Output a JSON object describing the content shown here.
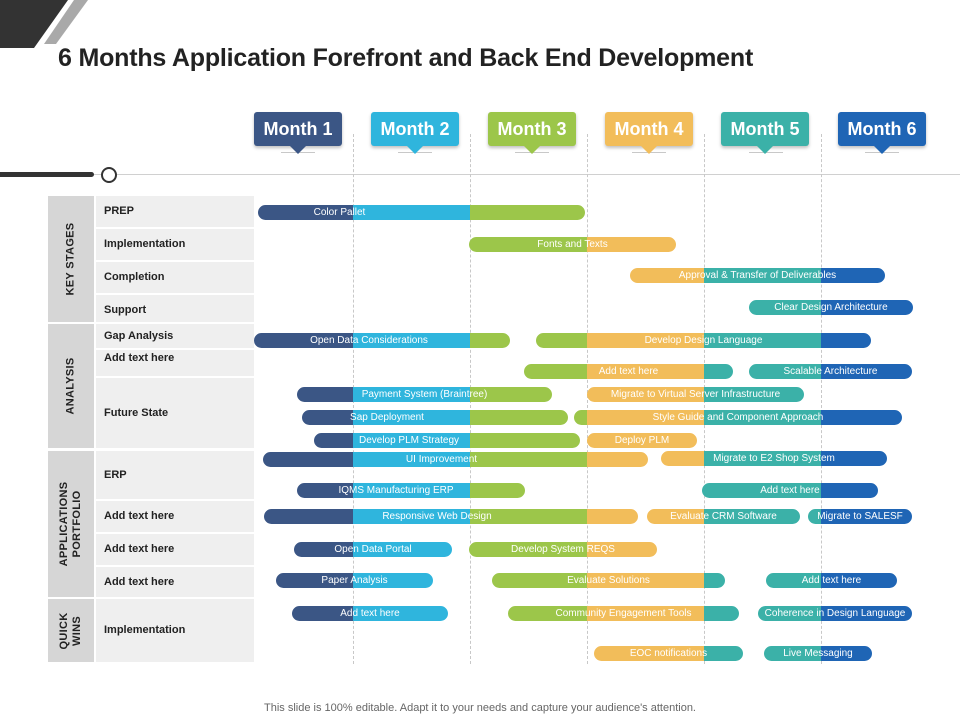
{
  "title": "6 Months Application Forefront and Back End Development",
  "footer": "This slide is 100% editable. Adapt it to your needs and capture your audience's attention.",
  "colors": {
    "navy": "#3b5685",
    "cyan": "#2fb5dd",
    "green": "#9cc64a",
    "yellow": "#f2bd5a",
    "teal": "#3bb1a8",
    "blue": "#1f65b5"
  },
  "months": [
    {
      "label": "Month 1",
      "color": "#3b5685"
    },
    {
      "label": "Month 2",
      "color": "#2fb5dd"
    },
    {
      "label": "Month 3",
      "color": "#9cc64a"
    },
    {
      "label": "Month 4",
      "color": "#f2bd5a"
    },
    {
      "label": "Month 5",
      "color": "#3bb1a8"
    },
    {
      "label": "Month 6",
      "color": "#1f65b5"
    }
  ],
  "groups": [
    {
      "label": "KEY  STAGES"
    },
    {
      "label": "ANALYSIS"
    },
    {
      "label": "APPLICATIONS\nPORTFOLIO"
    },
    {
      "label": "QUICK\nWINS"
    }
  ],
  "rows": [
    {
      "label": "PREP"
    },
    {
      "label": "Implementation"
    },
    {
      "label": "Completion"
    },
    {
      "label": "Support"
    },
    {
      "label": "Gap Analysis"
    },
    {
      "label": "Add text here"
    },
    {
      "label": "Future State"
    },
    {
      "label": "ERP"
    },
    {
      "label": "Add text here"
    },
    {
      "label": "Add text here"
    },
    {
      "label": "Add text here"
    },
    {
      "label": "Implementation"
    }
  ],
  "tasks": [
    {
      "label": "Color Pallet"
    },
    {
      "label": "Fonts and Texts"
    },
    {
      "label": "Approval & Transfer of Deliverables"
    },
    {
      "label": "Clear Design Architecture"
    },
    {
      "label": "Open Data Considerations"
    },
    {
      "label": "Develop Design Language"
    },
    {
      "label": "Add text here"
    },
    {
      "label": "Scalable Architecture"
    },
    {
      "label": "Payment System (Braintree)"
    },
    {
      "label": "Migrate to Virtual Server Infrastructure"
    },
    {
      "label": "Sap Deployment"
    },
    {
      "label": "Style Guide and Component  Approach"
    },
    {
      "label": "Develop PLM  Strategy"
    },
    {
      "label": "Deploy PLM"
    },
    {
      "label": "UI Improvement"
    },
    {
      "label": "Migrate to E2 Shop System"
    },
    {
      "label": "IQMS  Manufacturing ERP"
    },
    {
      "label": "Add text here"
    },
    {
      "label": "Responsive Web Design"
    },
    {
      "label": "Evaluate  CRM  Software"
    },
    {
      "label": "Migrate to  SALESF"
    },
    {
      "label": "Open Data Portal"
    },
    {
      "label": "Develop System REQS"
    },
    {
      "label": "Paper Analysis"
    },
    {
      "label": "Evaluate Solutions"
    },
    {
      "label": "Add text here"
    },
    {
      "label": "Add text here"
    },
    {
      "label": "Community  Engagement  Tools"
    },
    {
      "label": "Coherence in Design Language"
    },
    {
      "label": "EOC  notifications"
    },
    {
      "label": "Live Messaging"
    }
  ]
}
